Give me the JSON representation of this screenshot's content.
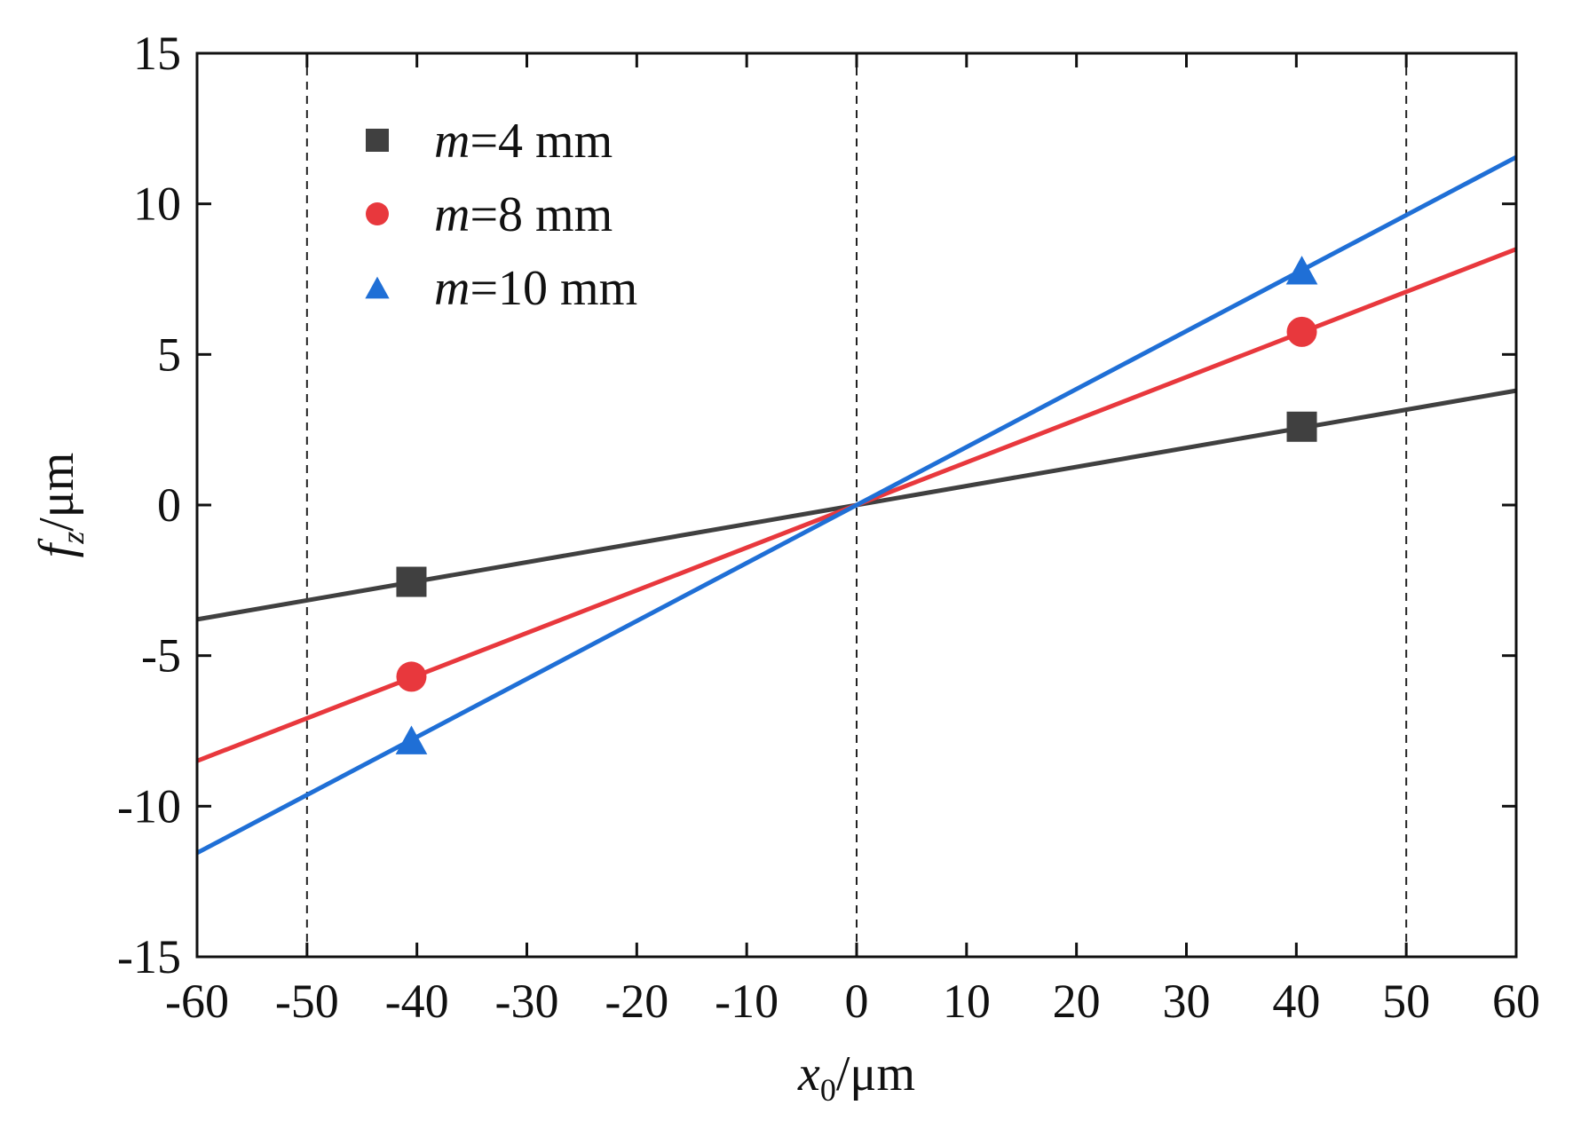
{
  "chart_data": {
    "type": "line",
    "title": "",
    "xlabel": {
      "var": "x",
      "sub": "0",
      "unit": "/μm"
    },
    "ylabel": {
      "var": "f",
      "sub": "z",
      "unit": "/μm"
    },
    "xlim": [
      -60,
      60
    ],
    "ylim": [
      -15,
      15
    ],
    "xticks": [
      -60,
      -50,
      -40,
      -30,
      -20,
      -10,
      0,
      10,
      20,
      30,
      40,
      50,
      60
    ],
    "yticks": [
      -15,
      -10,
      -5,
      0,
      5,
      10,
      15
    ],
    "grid": false,
    "reference_lines_x": [
      -50,
      0,
      50
    ],
    "legend_position": "top-left",
    "series": [
      {
        "name": "m=4 mm",
        "label_var": "m",
        "label_rest": "=4 mm",
        "color": "#404040",
        "marker": "square",
        "slope": 0.0633,
        "line_x": [
          -60,
          60
        ],
        "markers_x": [
          -40.5,
          40.5
        ],
        "markers_y": [
          -2.55,
          2.6
        ]
      },
      {
        "name": "m=8 mm",
        "label_var": "m",
        "label_rest": "=8 mm",
        "color": "#e8383d",
        "marker": "circle",
        "slope": 0.1416,
        "line_x": [
          -60,
          60
        ],
        "markers_x": [
          -40.5,
          40.5
        ],
        "markers_y": [
          -5.7,
          5.75
        ]
      },
      {
        "name": "m=10 mm",
        "label_var": "m",
        "label_rest": "=10 mm",
        "color": "#1f6fd6",
        "marker": "triangle",
        "slope": 0.1925,
        "line_x": [
          -60,
          60
        ],
        "markers_x": [
          -40.5,
          40.5
        ],
        "markers_y": [
          -7.8,
          7.8
        ]
      }
    ]
  }
}
